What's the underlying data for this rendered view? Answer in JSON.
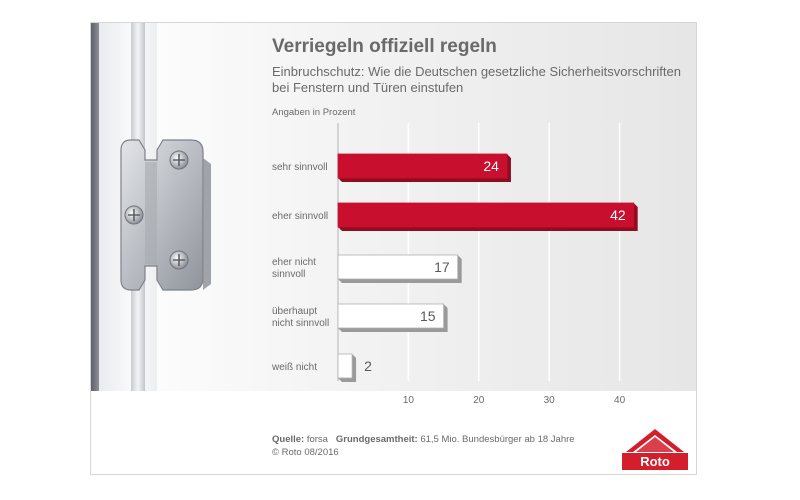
{
  "title": "Verriegeln offiziell regeln",
  "subtitle_line1": "Einbruchschutz: Wie die Deutschen gesetzliche Sicherheitsvorschriften",
  "subtitle_line2": "bei Fenstern und Türen einstufen",
  "unit_label": "Angaben in Prozent",
  "source_label": "Quelle:",
  "source_value": "forsa",
  "population_label": "Grundgesamtheit:",
  "population_value": "61,5 Mio. Bundesbürger ab 18 Jahre",
  "copyright": "© Roto 08/2016",
  "logo_text": "Roto",
  "colors": {
    "highlight": "#c8102e",
    "highlight_side": "#8e0d20",
    "plain": "#ffffff",
    "plain_side": "#9a9a9a",
    "grid": "#ffffff",
    "logo": "#d21f2b"
  },
  "icons": [
    "window-hinge-image",
    "roto-roof-logo"
  ],
  "chart_data": {
    "type": "bar",
    "orientation": "horizontal",
    "categories": [
      [
        "sehr sinnvoll"
      ],
      [
        "eher sinnvoll"
      ],
      [
        "eher nicht",
        "sinnvoll"
      ],
      [
        "überhaupt",
        "nicht sinnvoll"
      ],
      [
        "weiß nicht"
      ]
    ],
    "values": [
      24,
      42,
      17,
      15,
      2
    ],
    "highlighted": [
      true,
      true,
      false,
      false,
      false
    ],
    "xlim": [
      0,
      43.5
    ],
    "xticks": [
      10,
      20,
      30,
      40
    ],
    "grid": true,
    "xlabel": "",
    "ylabel": ""
  }
}
